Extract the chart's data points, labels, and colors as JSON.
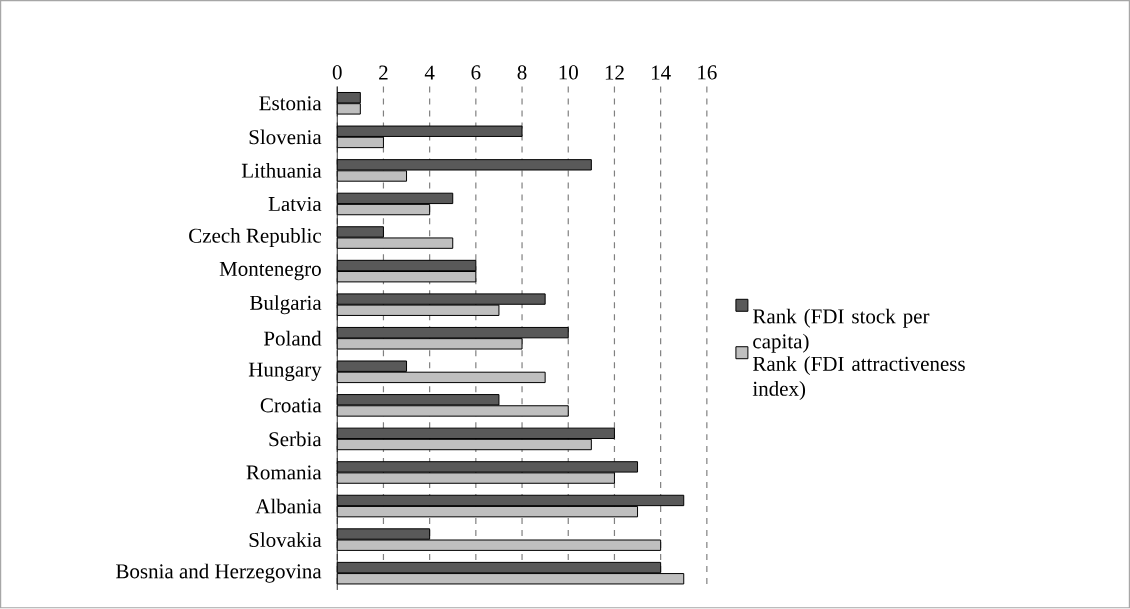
{
  "chart_data": {
    "type": "bar",
    "orientation": "horizontal",
    "categories": [
      "Estonia",
      "Slovenia",
      "Lithuania",
      "Latvia",
      "Czech Republic",
      "Montenegro",
      "Bulgaria",
      "Poland",
      "Hungary",
      "Croatia",
      "Serbia",
      "Romania",
      "Albania",
      "Slovakia",
      "Bosnia and Herzegovina"
    ],
    "series": [
      {
        "name": "Rank (FDI stock per capita)",
        "color": "#595959",
        "values": [
          1,
          8,
          11,
          5,
          2,
          6,
          9,
          10,
          3,
          7,
          12,
          13,
          15,
          4,
          14
        ]
      },
      {
        "name": "Rank (FDI attractiveness index)",
        "color": "#bfbfbf",
        "values": [
          1,
          2,
          3,
          4,
          5,
          6,
          7,
          8,
          9,
          10,
          11,
          12,
          13,
          14,
          15
        ]
      }
    ],
    "xlim": [
      0,
      16
    ],
    "xticks": [
      0,
      2,
      4,
      6,
      8,
      10,
      12,
      14,
      16
    ],
    "grid": "x",
    "legend": "right"
  }
}
